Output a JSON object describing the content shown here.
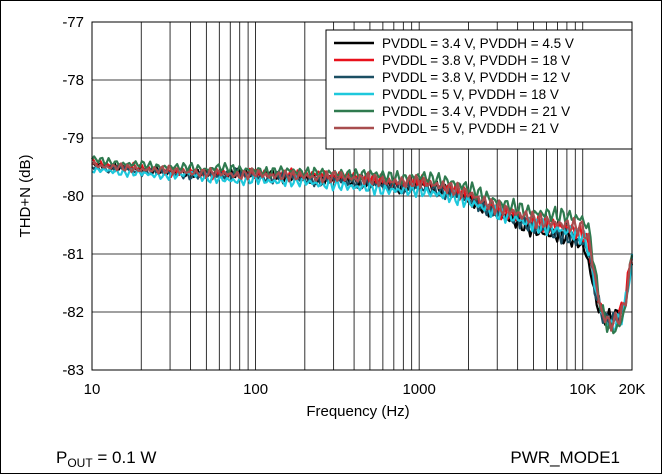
{
  "footer": {
    "condition_prefix": "P",
    "condition_sub": "OUT",
    "condition_value": " = 0.1 W",
    "mode": "PWR_MODE1"
  },
  "chart_data": {
    "type": "line",
    "xlabel": "Frequency (Hz)",
    "ylabel": "THD+N (dB)",
    "xscale": "log",
    "xlim": [
      10,
      20000
    ],
    "ylim": [
      -83,
      -77
    ],
    "grid": true,
    "legend_position": "top-right",
    "xticks": [
      {
        "value": 10,
        "label": "10"
      },
      {
        "value": 100,
        "label": "100"
      },
      {
        "value": 1000,
        "label": "1000"
      },
      {
        "value": 10000,
        "label": "10K"
      },
      {
        "value": 20000,
        "label": "20K"
      }
    ],
    "yticks": [
      -77,
      -78,
      -79,
      -80,
      -81,
      -82,
      -83
    ],
    "x": [
      10,
      12,
      15,
      20,
      25,
      30,
      40,
      50,
      60,
      80,
      100,
      120,
      150,
      200,
      250,
      300,
      400,
      500,
      600,
      800,
      1000,
      1200,
      1500,
      2000,
      2500,
      3000,
      4000,
      5000,
      6000,
      8000,
      10000,
      11000,
      12000,
      13000,
      14000,
      15000,
      16000,
      17000,
      18000,
      20000
    ],
    "series": [
      {
        "name": "PVDDL = 3.4 V, PVDDH = 4.5 V",
        "color": "#000000",
        "values": [
          -79.45,
          -79.5,
          -79.5,
          -79.55,
          -79.55,
          -79.6,
          -79.6,
          -79.6,
          -79.65,
          -79.6,
          -79.65,
          -79.6,
          -79.7,
          -79.7,
          -79.7,
          -79.7,
          -79.75,
          -79.75,
          -79.8,
          -79.85,
          -79.8,
          -79.85,
          -79.9,
          -80.05,
          -80.2,
          -80.3,
          -80.45,
          -80.6,
          -80.65,
          -80.7,
          -80.85,
          -81.2,
          -81.8,
          -82.0,
          -82.1,
          -82.1,
          -82.05,
          -82.0,
          -81.9,
          -81.1
        ]
      },
      {
        "name": "PVDDL = 3.8 V, PVDDH = 18 V",
        "color": "#e8111b",
        "values": [
          -79.4,
          -79.45,
          -79.5,
          -79.5,
          -79.55,
          -79.6,
          -79.55,
          -79.65,
          -79.6,
          -79.65,
          -79.6,
          -79.65,
          -79.6,
          -79.65,
          -79.6,
          -79.7,
          -79.65,
          -79.7,
          -79.75,
          -79.8,
          -79.75,
          -79.8,
          -79.85,
          -80.0,
          -80.15,
          -80.25,
          -80.35,
          -80.45,
          -80.5,
          -80.55,
          -80.65,
          -80.9,
          -81.6,
          -81.95,
          -82.1,
          -82.15,
          -82.1,
          -82.0,
          -81.85,
          -81.0
        ]
      },
      {
        "name": "PVDDL = 3.8 V, PVDDH = 12 V",
        "color": "#1b4f63",
        "values": [
          -79.5,
          -79.55,
          -79.5,
          -79.6,
          -79.55,
          -79.6,
          -79.65,
          -79.6,
          -79.65,
          -79.6,
          -79.65,
          -79.7,
          -79.65,
          -79.7,
          -79.75,
          -79.7,
          -79.75,
          -79.8,
          -79.8,
          -79.85,
          -79.85,
          -79.9,
          -79.95,
          -80.05,
          -80.2,
          -80.3,
          -80.4,
          -80.55,
          -80.6,
          -80.7,
          -80.8,
          -81.0,
          -81.7,
          -82.0,
          -82.15,
          -82.15,
          -82.1,
          -82.05,
          -81.9,
          -81.1
        ]
      },
      {
        "name": "PVDDL = 5 V, PVDDH = 18 V",
        "color": "#1ec8dc",
        "values": [
          -79.55,
          -79.55,
          -79.6,
          -79.6,
          -79.65,
          -79.65,
          -79.6,
          -79.7,
          -79.7,
          -79.75,
          -79.7,
          -79.75,
          -79.75,
          -79.75,
          -79.8,
          -79.8,
          -79.85,
          -79.85,
          -79.9,
          -79.9,
          -79.9,
          -79.95,
          -80.0,
          -80.1,
          -80.2,
          -80.3,
          -80.4,
          -80.5,
          -80.55,
          -80.6,
          -80.7,
          -80.95,
          -81.6,
          -82.0,
          -82.2,
          -82.25,
          -82.2,
          -82.1,
          -81.95,
          -81.1
        ]
      },
      {
        "name": "PVDDL = 3.4 V, PVDDH = 21 V",
        "color": "#2f7a4f",
        "values": [
          -79.35,
          -79.4,
          -79.45,
          -79.45,
          -79.5,
          -79.5,
          -79.5,
          -79.55,
          -79.5,
          -79.55,
          -79.55,
          -79.6,
          -79.55,
          -79.6,
          -79.6,
          -79.6,
          -79.65,
          -79.6,
          -79.65,
          -79.7,
          -79.65,
          -79.7,
          -79.75,
          -79.85,
          -80.0,
          -80.1,
          -80.2,
          -80.3,
          -80.3,
          -80.35,
          -80.4,
          -80.6,
          -81.4,
          -81.95,
          -82.2,
          -82.3,
          -82.3,
          -82.2,
          -82.0,
          -81.0
        ]
      },
      {
        "name": "PVDDL = 5 V, PVDDH = 21 V",
        "color": "#a84d4e",
        "values": [
          -79.45,
          -79.5,
          -79.5,
          -79.55,
          -79.55,
          -79.55,
          -79.6,
          -79.6,
          -79.6,
          -79.65,
          -79.6,
          -79.65,
          -79.65,
          -79.65,
          -79.7,
          -79.65,
          -79.7,
          -79.7,
          -79.75,
          -79.75,
          -79.75,
          -79.8,
          -79.85,
          -79.95,
          -80.1,
          -80.2,
          -80.3,
          -80.4,
          -80.45,
          -80.5,
          -80.55,
          -80.8,
          -81.5,
          -82.0,
          -82.15,
          -82.2,
          -82.15,
          -82.05,
          -81.9,
          -81.05
        ]
      }
    ]
  }
}
